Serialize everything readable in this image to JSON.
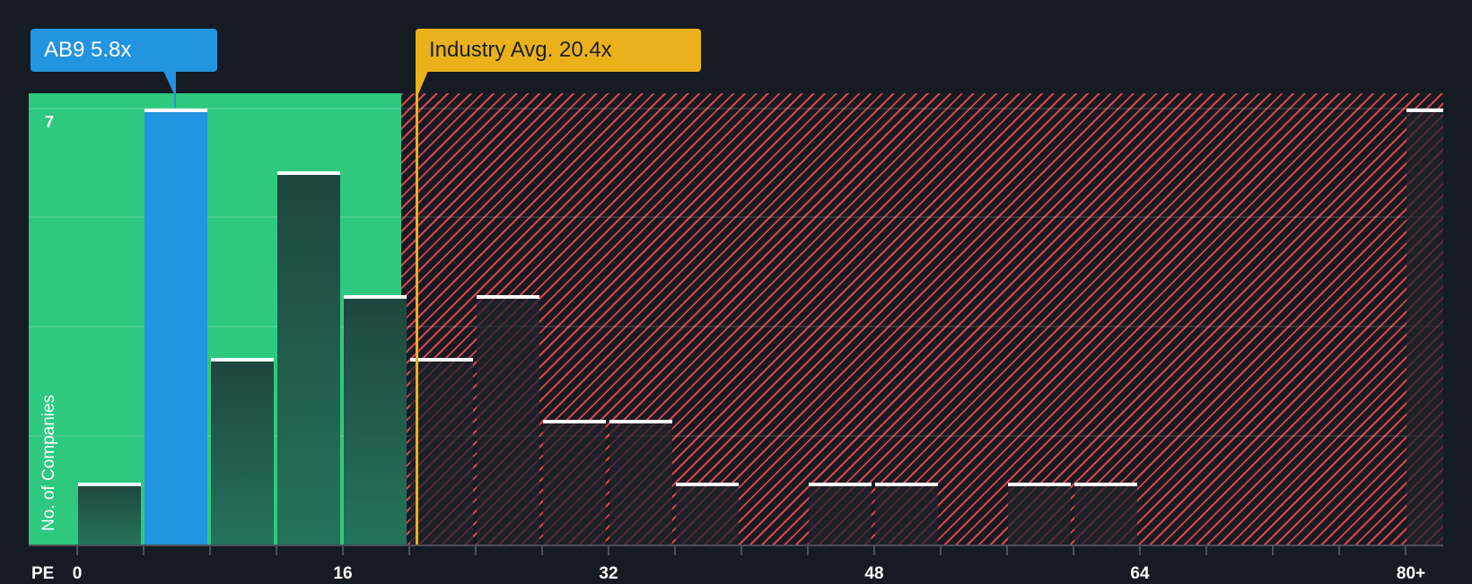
{
  "chart_data": {
    "type": "bar",
    "title": "",
    "xlabel": "PE",
    "ylabel": "No. of Companies",
    "x_tick_labels": [
      "0",
      "16",
      "32",
      "48",
      "64",
      "80+"
    ],
    "categories": [
      "0-4",
      "4-8",
      "8-12",
      "12-16",
      "16-20",
      "20-24",
      "24-28",
      "28-32",
      "32-36",
      "36-40",
      "40-44",
      "44-48",
      "48-52",
      "52-56",
      "56-60",
      "60-64",
      "64-68",
      "68-72",
      "72-76",
      "76-80",
      "80+"
    ],
    "values": [
      1,
      7,
      3,
      6,
      4,
      3,
      4,
      2,
      2,
      1,
      0,
      1,
      1,
      0,
      1,
      1,
      0,
      0,
      0,
      0,
      7
    ],
    "highlighted_bin": "4-8",
    "ylim": [
      0,
      7
    ],
    "y_tick_labels": [
      "7"
    ],
    "grid": true,
    "annotations": [
      {
        "label": "AB9 5.8x",
        "value": 5.8,
        "color": "#2394df"
      },
      {
        "label": "Industry Avg. 20.4x",
        "value": 20.4,
        "color": "#eab11a"
      }
    ],
    "zones": [
      {
        "name": "below-industry",
        "from": 0,
        "to": 19.6,
        "color": "#2ec97f"
      },
      {
        "name": "above-industry",
        "from": 19.6,
        "to": 84,
        "color": "#e0434a",
        "pattern": "hatched"
      }
    ]
  },
  "labels": {
    "company_callout": "AB9 5.8x",
    "industry_callout": "Industry Avg. 20.4x",
    "y_axis": "No. of Companies",
    "y_max": "7",
    "x_axis": "PE",
    "x_ticks": [
      "0",
      "16",
      "32",
      "48",
      "64",
      "80+"
    ]
  },
  "colors": {
    "background": "#151b23",
    "green_zone": "#2ec97f",
    "red_hatch": "#e0434a",
    "company": "#2394df",
    "industry": "#eab11a"
  }
}
